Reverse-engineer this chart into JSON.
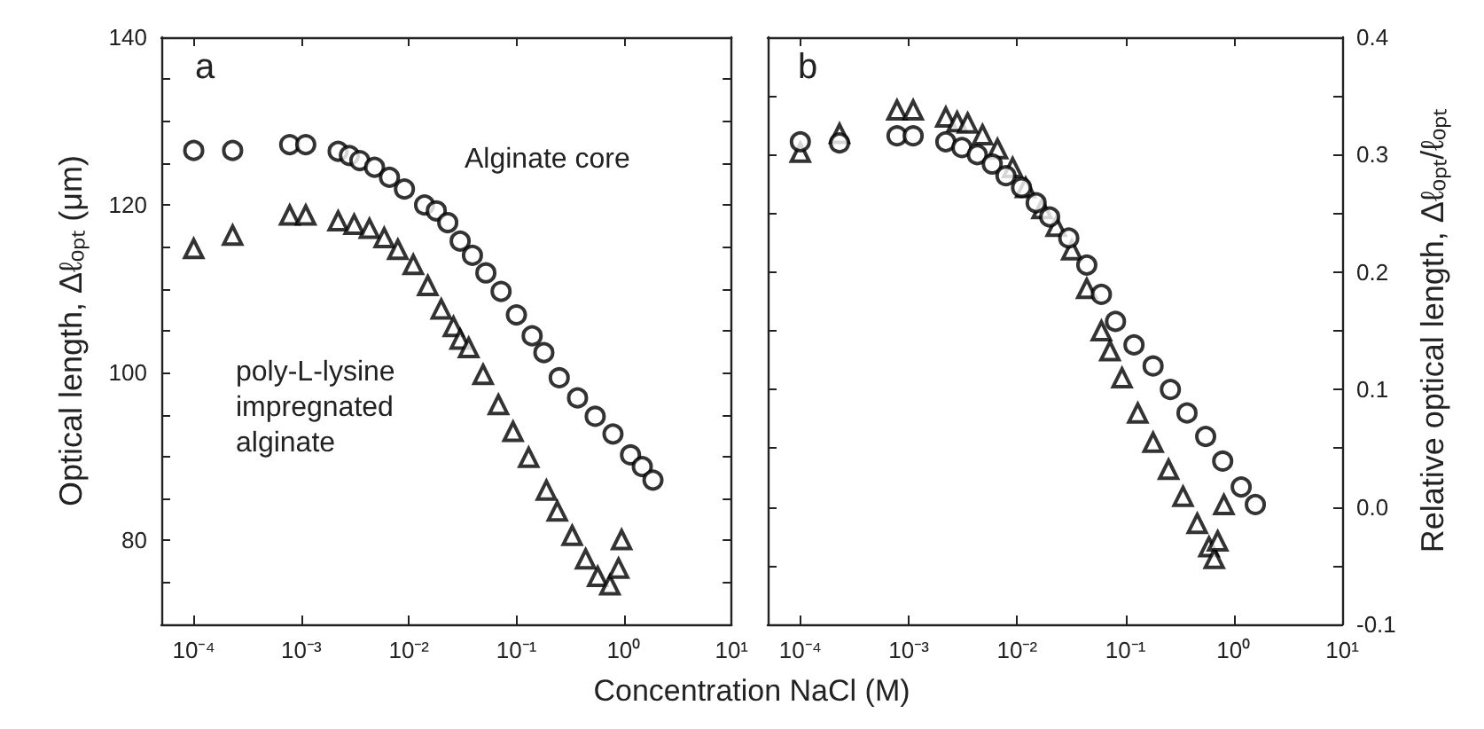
{
  "chart_data": [
    {
      "type": "scatter",
      "title": "a",
      "xlabel": "Concentration NaCl (M)",
      "ylabel": "Optical length, Δℓₒₚₜ (μm)",
      "log": "x",
      "grid": false,
      "legend": false,
      "xlim": [
        5e-05,
        10
      ],
      "xticks": [
        {
          "value": 0.0001,
          "label": "10⁻⁴"
        },
        {
          "value": 0.001,
          "label": "10⁻³"
        },
        {
          "value": 0.01,
          "label": "10⁻²"
        },
        {
          "value": 0.1,
          "label": "10⁻¹"
        },
        {
          "value": 1,
          "label": "10⁰"
        },
        {
          "value": 10,
          "label": "10¹"
        }
      ],
      "ylim": [
        70,
        140
      ],
      "yticks": [
        {
          "value": 75,
          "label": null
        },
        80,
        {
          "value": 85,
          "label": null
        },
        {
          "value": 90,
          "label": null
        },
        {
          "value": 95,
          "label": null
        },
        100,
        {
          "value": 105,
          "label": null
        },
        {
          "value": 110,
          "label": null
        },
        {
          "value": 115,
          "label": null
        },
        120,
        {
          "value": 125,
          "label": null
        },
        {
          "value": 130,
          "label": null
        },
        {
          "value": 135,
          "label": null
        },
        140
      ],
      "series": [
        {
          "name": "Alginate core",
          "color": "#000000",
          "marker": "circle",
          "x": [
            0.0001,
            0.00023,
            0.00078,
            0.0011,
            0.0022,
            0.0028,
            0.0035,
            0.0048,
            0.0066,
            0.0091,
            0.014,
            0.018,
            0.023,
            0.03,
            0.039,
            0.052,
            0.072,
            0.1,
            0.14,
            0.18,
            0.25,
            0.37,
            0.54,
            0.79,
            1.15,
            1.48,
            1.86
          ],
          "values": [
            126.5,
            126.5,
            127.2,
            127.2,
            126.4,
            125.9,
            125.3,
            124.5,
            123.3,
            121.9,
            120.0,
            119.3,
            117.9,
            115.7,
            114.0,
            111.9,
            109.7,
            106.9,
            104.4,
            102.4,
            99.4,
            97.0,
            94.8,
            92.7,
            90.2,
            88.8,
            87.2
          ]
        },
        {
          "name": "poly-L-lysine impregnated alginate",
          "color": "#000000",
          "marker": "triangle",
          "x": [
            0.0001,
            0.00023,
            0.00078,
            0.0011,
            0.0022,
            0.0031,
            0.0043,
            0.0059,
            0.0079,
            0.011,
            0.015,
            0.02,
            0.026,
            0.03,
            0.036,
            0.049,
            0.068,
            0.093,
            0.13,
            0.19,
            0.24,
            0.33,
            0.44,
            0.57,
            0.74,
            0.89,
            0.95
          ],
          "values": [
            114.8,
            116.4,
            118.8,
            118.8,
            118.1,
            117.7,
            117.2,
            116.1,
            114.7,
            112.9,
            110.4,
            107.6,
            105.5,
            104.0,
            103.0,
            99.8,
            96.2,
            93.0,
            89.9,
            86.0,
            83.5,
            80.6,
            77.8,
            75.7,
            74.7,
            76.7,
            80.1
          ]
        }
      ]
    },
    {
      "type": "scatter",
      "title": "b",
      "ylabel": "Relative optical length, Δℓₒₚₜ/ℓₒₚₜ",
      "log": "x",
      "grid": false,
      "legend": false,
      "xlim": [
        5e-05,
        10
      ],
      "xticks": [
        {
          "value": 0.0001,
          "label": "10⁻⁴"
        },
        {
          "value": 0.001,
          "label": "10⁻³"
        },
        {
          "value": 0.01,
          "label": "10⁻²"
        },
        {
          "value": 0.1,
          "label": "10⁻¹"
        },
        {
          "value": 1,
          "label": "10⁰"
        },
        {
          "value": 10,
          "label": "10¹"
        }
      ],
      "ylim": [
        -0.1,
        0.4
      ],
      "yticks": [
        {
          "value": -0.1,
          "label": "-0.1"
        },
        {
          "value": -0.05,
          "label": null
        },
        {
          "value": 0,
          "label": "0.0"
        },
        {
          "value": 0.05,
          "label": null
        },
        0.1,
        {
          "value": 0.15,
          "label": null
        },
        0.2,
        {
          "value": 0.25,
          "label": null
        },
        0.3,
        {
          "value": 0.35,
          "label": null
        },
        0.4
      ],
      "series": [
        {
          "color": "#000000",
          "marker": "circle",
          "x": [
            0.0001,
            0.00023,
            0.00078,
            0.0011,
            0.0022,
            0.0031,
            0.0043,
            0.0059,
            0.0079,
            0.011,
            0.015,
            0.02,
            0.03,
            0.044,
            0.06,
            0.081,
            0.12,
            0.18,
            0.26,
            0.37,
            0.55,
            0.79,
            1.17,
            1.58
          ],
          "values": [
            0.311,
            0.31,
            0.316,
            0.316,
            0.311,
            0.306,
            0.3,
            0.292,
            0.282,
            0.272,
            0.259,
            0.247,
            0.229,
            0.206,
            0.181,
            0.158,
            0.138,
            0.12,
            0.1,
            0.08,
            0.06,
            0.039,
            0.017,
            0.002
          ]
        },
        {
          "color": "#000000",
          "marker": "triangle",
          "x": [
            0.0001,
            0.00023,
            0.00078,
            0.0011,
            0.0022,
            0.0028,
            0.0035,
            0.0048,
            0.0066,
            0.0091,
            0.012,
            0.017,
            0.023,
            0.032,
            0.044,
            0.06,
            0.072,
            0.093,
            0.13,
            0.18,
            0.25,
            0.34,
            0.46,
            0.59,
            0.66,
            0.71,
            0.81
          ],
          "values": [
            0.302,
            0.318,
            0.338,
            0.338,
            0.332,
            0.328,
            0.327,
            0.317,
            0.305,
            0.289,
            0.272,
            0.254,
            0.239,
            0.219,
            0.186,
            0.15,
            0.133,
            0.11,
            0.08,
            0.055,
            0.032,
            0.009,
            -0.014,
            -0.034,
            -0.044,
            -0.029,
            0.002
          ]
        }
      ]
    }
  ]
}
